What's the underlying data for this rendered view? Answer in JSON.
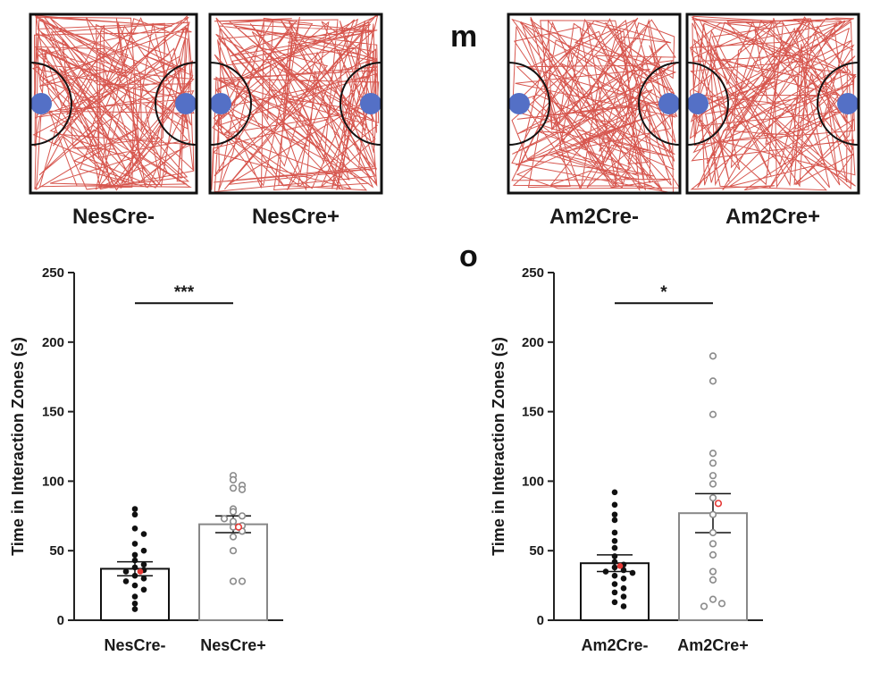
{
  "colors": {
    "track": "#d03a30",
    "stimulus": "#5470c6",
    "axis": "#222222",
    "dot_filled": "#111111",
    "dot_open_stroke": "#8a8a8a",
    "highlight": "#e53935"
  },
  "panel_letters": [
    "m",
    "o"
  ],
  "track_panels": [
    {
      "label": "NesCre-"
    },
    {
      "label": "NesCre+"
    },
    {
      "label": "Am2Cre-"
    },
    {
      "label": "Am2Cre+"
    }
  ],
  "chart_data": [
    {
      "type": "bar",
      "title": "",
      "ylabel": "Time in Interaction Zones (s)",
      "xlabel": "",
      "ylim": [
        0,
        250
      ],
      "yticks": [
        0,
        50,
        100,
        150,
        200,
        250
      ],
      "categories": [
        "NesCre-",
        "NesCre+"
      ],
      "values": [
        37,
        69
      ],
      "sem": [
        5,
        6
      ],
      "significance": "***",
      "points": [
        [
          80,
          76,
          66,
          62,
          55,
          50,
          47,
          43,
          40,
          38,
          36,
          35,
          32,
          30,
          28,
          25,
          22,
          17,
          12,
          8
        ],
        [
          104,
          101,
          97,
          95,
          94,
          80,
          78,
          75,
          73,
          71,
          68,
          67,
          64,
          60,
          50,
          28,
          28
        ]
      ],
      "highlight_points": [
        35,
        67
      ]
    },
    {
      "type": "bar",
      "title": "",
      "ylabel": "Time in Interaction Zones (s)",
      "xlabel": "",
      "ylim": [
        0,
        250
      ],
      "yticks": [
        0,
        50,
        100,
        150,
        200,
        250
      ],
      "categories": [
        "Am2Cre-",
        "Am2Cre+"
      ],
      "values": [
        41,
        77
      ],
      "sem": [
        6,
        14
      ],
      "significance": "*",
      "points": [
        [
          92,
          83,
          76,
          72,
          63,
          57,
          52,
          46,
          42,
          40,
          38,
          36,
          35,
          34,
          32,
          30,
          26,
          23,
          20,
          17,
          13,
          10
        ],
        [
          190,
          172,
          148,
          120,
          113,
          104,
          98,
          88,
          76,
          63,
          55,
          47,
          35,
          29,
          15,
          12,
          10
        ]
      ],
      "highlight_points": [
        39,
        84
      ]
    }
  ]
}
